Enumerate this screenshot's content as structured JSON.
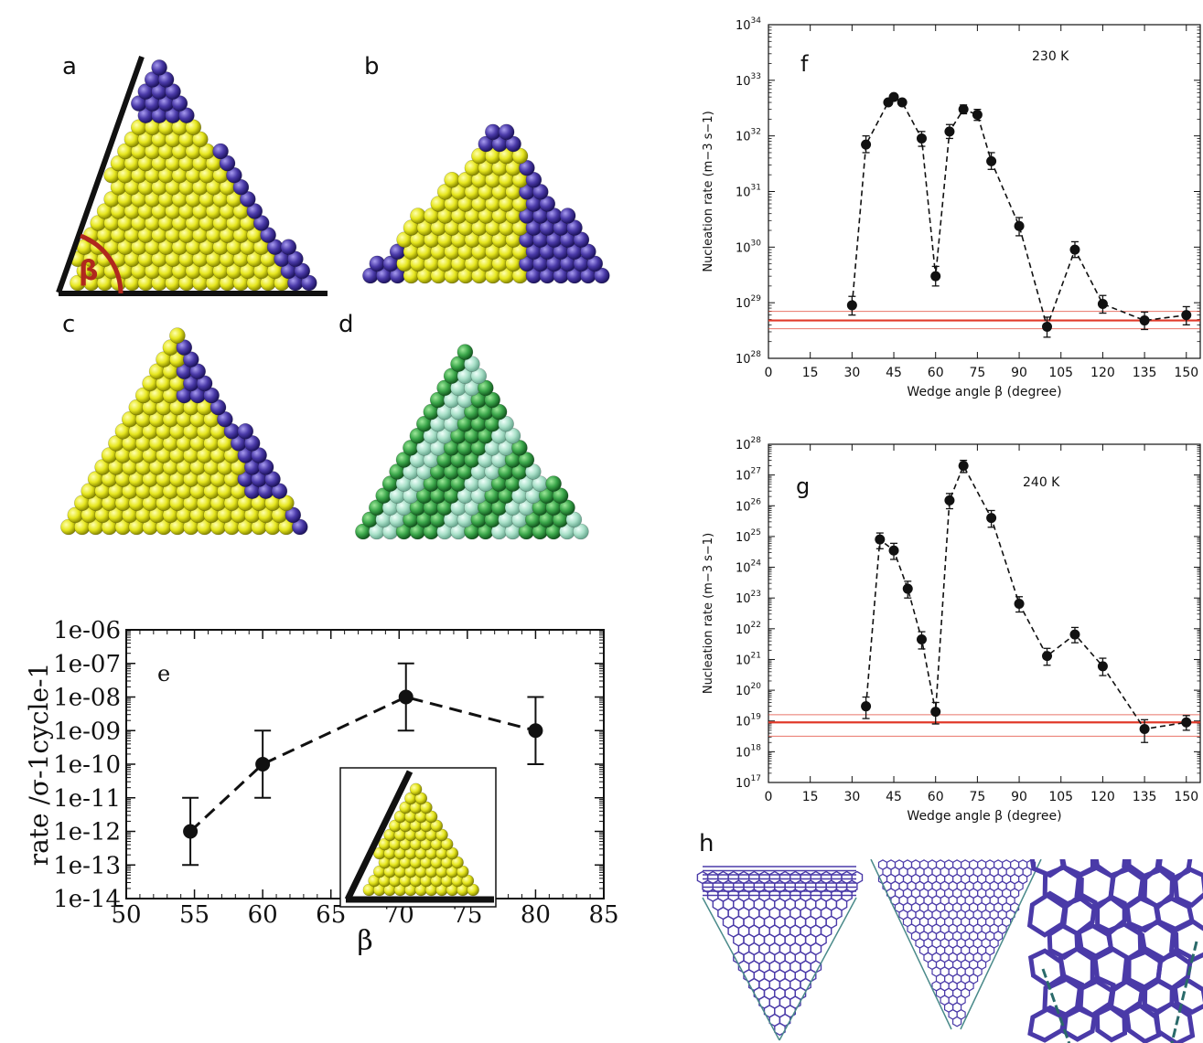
{
  "panels": {
    "a": {
      "letter": "a",
      "angle_label": "β"
    },
    "b": {
      "letter": "b"
    },
    "c": {
      "letter": "c"
    },
    "d": {
      "letter": "d"
    },
    "h": {
      "letter": "h"
    }
  },
  "colors": {
    "crystal_yellow": "#e6e61e",
    "liquid_blue": "#4a3aa8",
    "dark_green": "#3aa64a",
    "light_green": "#a8e0c8",
    "red_line": "#e03a2a",
    "wall": "#111111",
    "angle_arc": "#b0281e"
  },
  "chart_data": [
    {
      "id": "e",
      "type": "scatter",
      "letter": "e",
      "xlabel": "β",
      "ylabel": "rate /σ-1cycle-1",
      "xlim": [
        50,
        85
      ],
      "x_ticks": [
        "50",
        "55",
        "60",
        "65",
        "70",
        "75",
        "80",
        "85"
      ],
      "y_log": true,
      "y_exp_range": [
        -14,
        -6
      ],
      "y_ticks": [
        "1e-14",
        "1e-13",
        "1e-12",
        "1e-11",
        "1e-10",
        "1e-09",
        "1e-08",
        "1e-07",
        "1e-06"
      ],
      "line_style": "dashed",
      "points": [
        {
          "x": 54.7,
          "y": 1e-12,
          "err_low": 1e-13,
          "err_high": 1e-11
        },
        {
          "x": 60,
          "y": 1e-10,
          "err_low": 1e-11,
          "err_high": 1e-09
        },
        {
          "x": 70.5,
          "y": 1e-08,
          "err_low": 1e-09,
          "err_high": 1e-07
        },
        {
          "x": 80,
          "y": 1e-09,
          "err_low": 1e-10,
          "err_high": 1e-08
        }
      ]
    },
    {
      "id": "f",
      "type": "scatter",
      "letter": "f",
      "annotation": "230 K",
      "xlabel": "Wedge angle β (degree)",
      "ylabel": "Nucleation rate (m−3 s−1)",
      "xlim": [
        0,
        155
      ],
      "x_ticks": [
        "0",
        "15",
        "30",
        "45",
        "60",
        "75",
        "90",
        "105",
        "120",
        "135",
        "150"
      ],
      "y_log": true,
      "y_exp_range": [
        28,
        34
      ],
      "line_style": "dashed",
      "reference_band": {
        "center": 4.8e+28,
        "low": 3.4e+28,
        "high": 7e+28
      },
      "points": [
        {
          "x": 30,
          "y": 9e+28,
          "err_low": 6e+28,
          "err_high": 1.3e+29
        },
        {
          "x": 35,
          "y": 7e+31,
          "err_low": 5e+31,
          "err_high": 1e+32
        },
        {
          "x": 43,
          "y": 4e+32
        },
        {
          "x": 45,
          "y": 5e+32
        },
        {
          "x": 48,
          "y": 4e+32
        },
        {
          "x": 55,
          "y": 9e+31,
          "err_low": 6.5e+31,
          "err_high": 1.2e+32
        },
        {
          "x": 60,
          "y": 3e+29,
          "err_low": 2e+29,
          "err_high": 4.5e+29
        },
        {
          "x": 65,
          "y": 1.2e+32,
          "err_low": 9e+31,
          "err_high": 1.6e+32
        },
        {
          "x": 70,
          "y": 3e+32,
          "err_low": 2.5e+32,
          "err_high": 3.6e+32
        },
        {
          "x": 75,
          "y": 2.4e+32,
          "err_low": 1.9e+32,
          "err_high": 3e+32
        },
        {
          "x": 80,
          "y": 3.5e+31,
          "err_low": 2.5e+31,
          "err_high": 5e+31
        },
        {
          "x": 90,
          "y": 2.4e+30,
          "err_low": 1.6e+30,
          "err_high": 3.4e+30
        },
        {
          "x": 100,
          "y": 3.7e+28,
          "err_low": 2.4e+28,
          "err_high": 5.5e+28
        },
        {
          "x": 110,
          "y": 9e+29,
          "err_low": 6.5e+29,
          "err_high": 1.25e+30
        },
        {
          "x": 120,
          "y": 9.5e+28,
          "err_low": 6.5e+28,
          "err_high": 1.35e+29
        },
        {
          "x": 135,
          "y": 4.8e+28,
          "err_low": 3.3e+28,
          "err_high": 6.8e+28
        },
        {
          "x": 150,
          "y": 6e+28,
          "err_low": 4e+28,
          "err_high": 8.5e+28
        }
      ]
    },
    {
      "id": "g",
      "type": "scatter",
      "letter": "g",
      "annotation": "240 K",
      "xlabel": "Wedge angle β (degree)",
      "ylabel": "Nucleation rate (m−3 s−1)",
      "xlim": [
        0,
        155
      ],
      "x_ticks": [
        "0",
        "15",
        "30",
        "45",
        "60",
        "75",
        "90",
        "105",
        "120",
        "135",
        "150"
      ],
      "y_log": true,
      "y_exp_range": [
        17,
        28
      ],
      "line_style": "dashed",
      "reference_band": {
        "center": 9e+18,
        "low": 3.2e+18,
        "high": 1.6e+19
      },
      "points": [
        {
          "x": 35,
          "y": 3e+19,
          "err_low": 1.2e+19,
          "err_high": 6e+19
        },
        {
          "x": 40,
          "y": 8e+24,
          "err_low": 4e+24,
          "err_high": 1.3e+25
        },
        {
          "x": 45,
          "y": 3.5e+24,
          "err_low": 1.8e+24,
          "err_high": 6e+24
        },
        {
          "x": 50,
          "y": 2e+23,
          "err_low": 1e+23,
          "err_high": 3.5e+23
        },
        {
          "x": 55,
          "y": 4.5e+21,
          "err_low": 2.2e+21,
          "err_high": 8e+21
        },
        {
          "x": 60,
          "y": 2e+19,
          "err_low": 8e+18,
          "err_high": 4e+19
        },
        {
          "x": 65,
          "y": 1.5e+26,
          "err_low": 8e+25,
          "err_high": 2.5e+26
        },
        {
          "x": 70,
          "y": 2e+27,
          "err_low": 1.2e+27,
          "err_high": 3e+27
        },
        {
          "x": 80,
          "y": 4e+25,
          "err_low": 2e+25,
          "err_high": 7e+25
        },
        {
          "x": 90,
          "y": 6.5e+22,
          "err_low": 3.5e+22,
          "err_high": 1.1e+23
        },
        {
          "x": 100,
          "y": 1.3e+21,
          "err_low": 6.5e+20,
          "err_high": 2.3e+21
        },
        {
          "x": 110,
          "y": 6.5e+21,
          "err_low": 3.5e+21,
          "err_high": 1.1e+22
        },
        {
          "x": 120,
          "y": 6e+20,
          "err_low": 3e+20,
          "err_high": 1.1e+21
        },
        {
          "x": 135,
          "y": 5.5e+18,
          "err_low": 2e+18,
          "err_high": 1.1e+19
        },
        {
          "x": 150,
          "y": 9e+18,
          "err_low": 5e+18,
          "err_high": 1.5e+19
        }
      ]
    }
  ]
}
